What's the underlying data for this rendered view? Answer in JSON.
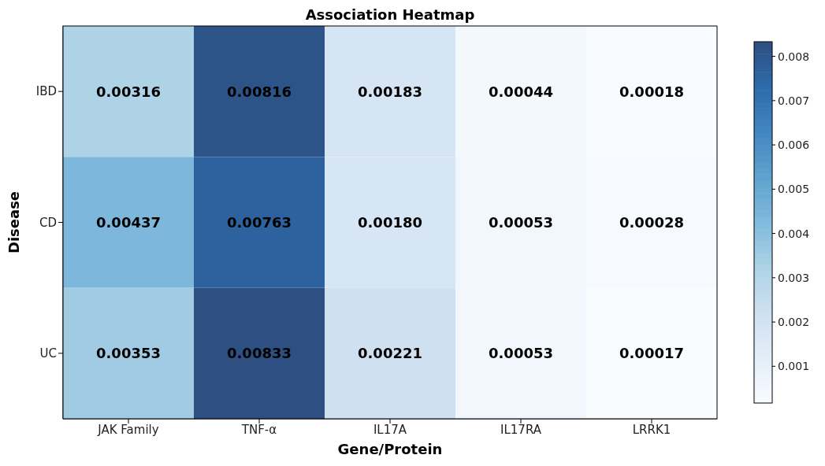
{
  "chart_data": {
    "type": "heatmap",
    "title": "Association Heatmap",
    "xlabel": "Gene/Protein",
    "ylabel": "Disease",
    "categories": [
      "JAK Family",
      "TNF-α",
      "IL17A",
      "IL17RA",
      "LRRK1"
    ],
    "y_categories": [
      "IBD",
      "CD",
      "UC"
    ],
    "cells": [
      [
        0.00316,
        0.00816,
        0.00183,
        0.00044,
        0.00018
      ],
      [
        0.00437,
        0.00763,
        0.0018,
        0.00053,
        0.00028
      ],
      [
        0.00353,
        0.00833,
        0.00221,
        0.00053,
        0.00017
      ]
    ],
    "cell_labels": [
      [
        "0.00316",
        "0.00816",
        "0.00183",
        "0.00044",
        "0.00018"
      ],
      [
        "0.00437",
        "0.00763",
        "0.00180",
        "0.00053",
        "0.00028"
      ],
      [
        "0.00353",
        "0.00833",
        "0.00221",
        "0.00053",
        "0.00017"
      ]
    ],
    "clim": [
      0.00017,
      0.00833
    ],
    "cticks": [
      0.001,
      0.002,
      0.003,
      0.004,
      0.005,
      0.006,
      0.007,
      0.008
    ],
    "data_labels": true
  }
}
